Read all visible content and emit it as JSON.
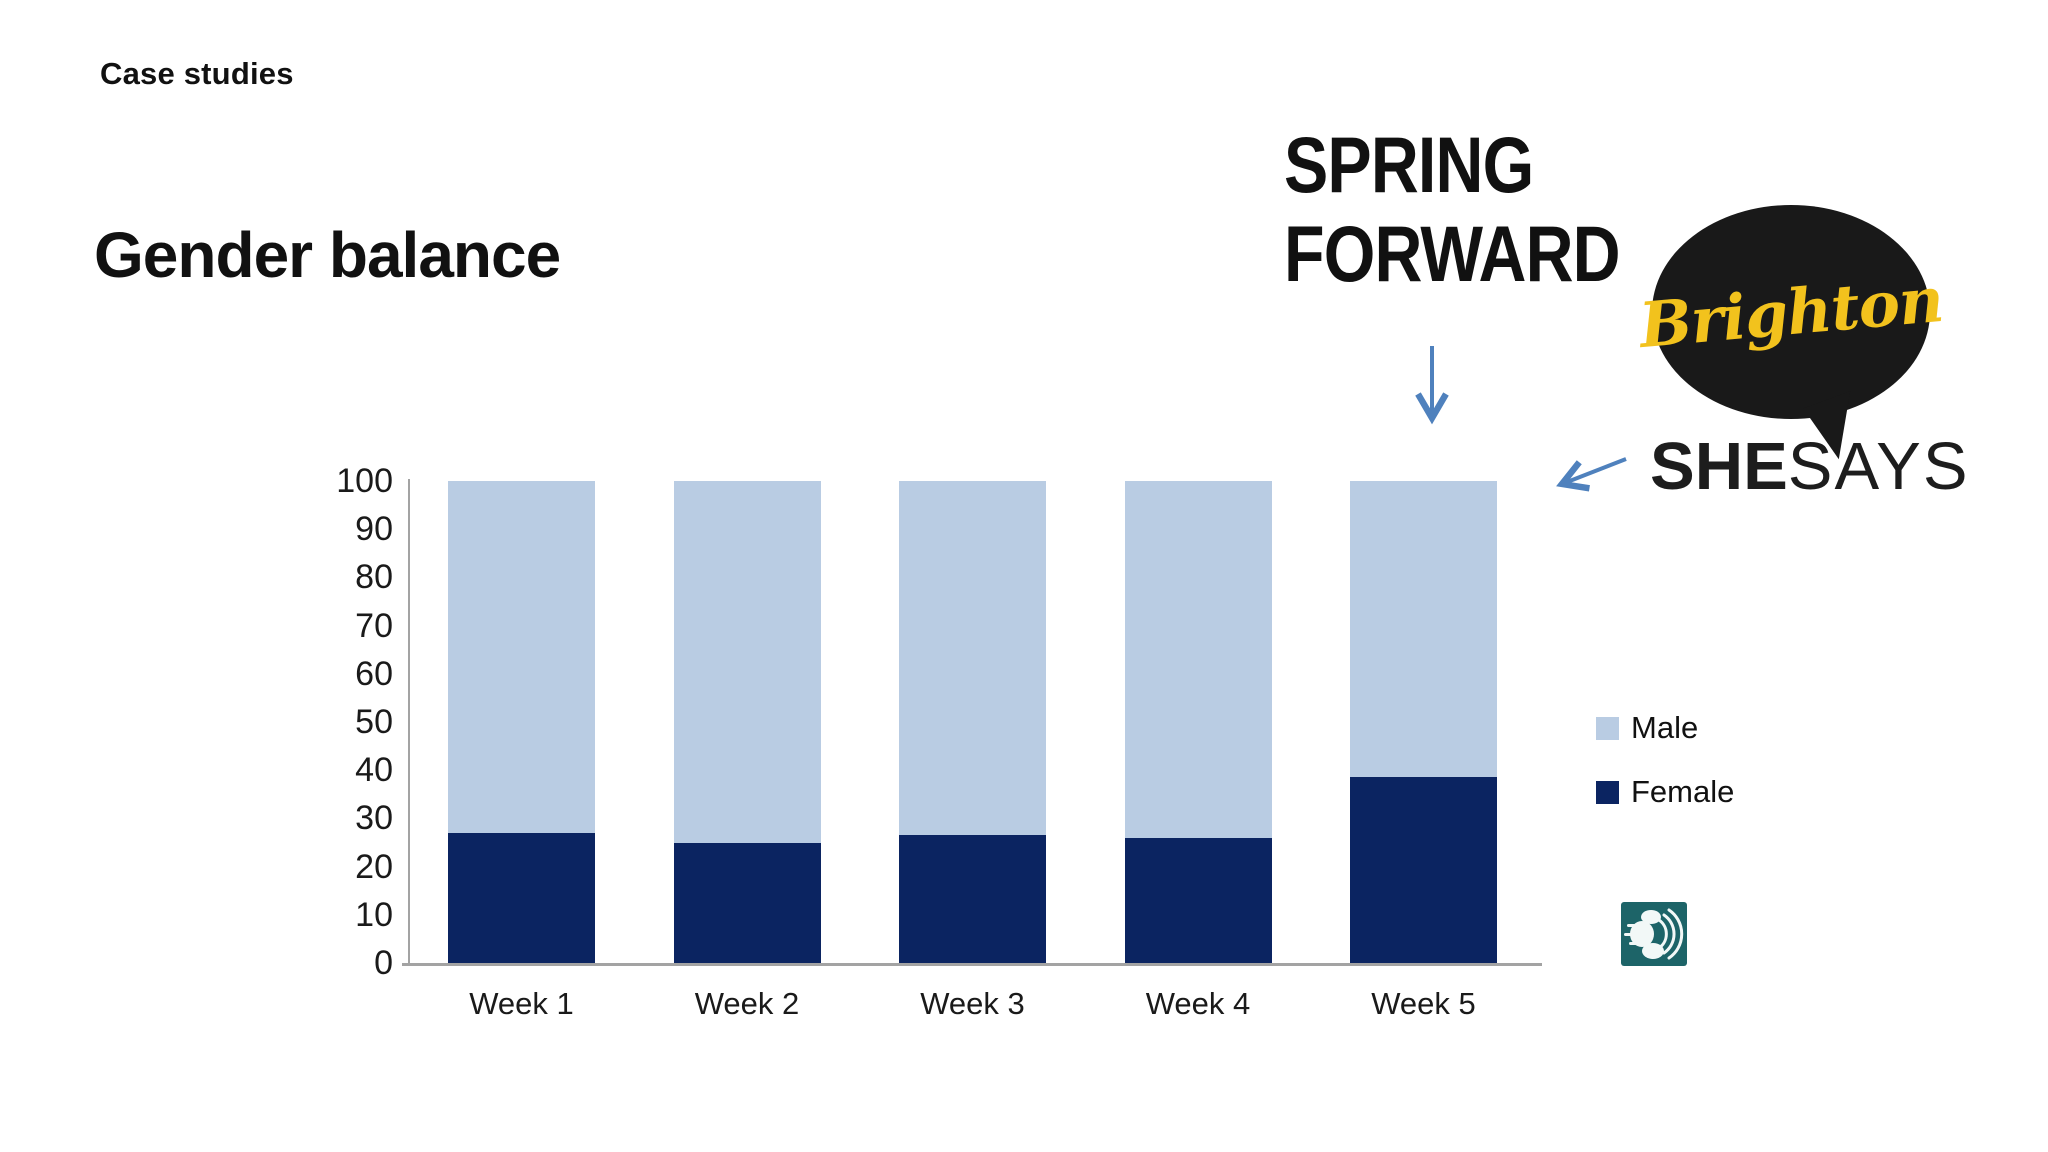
{
  "slide": {
    "eyebrow": "Case studies",
    "title": "Gender balance",
    "background": "#ffffff"
  },
  "chart_data": {
    "type": "bar",
    "stacked": true,
    "title": "",
    "xlabel": "",
    "ylabel": "",
    "categories": [
      "Week 1",
      "Week 2",
      "Week 3",
      "Week 4",
      "Week 5"
    ],
    "series": [
      {
        "name": "Female",
        "color": "#0b2461",
        "values": [
          27,
          25,
          26.5,
          26,
          38.5
        ]
      },
      {
        "name": "Male",
        "color": "#b9cce3",
        "values": [
          73,
          75,
          73.5,
          74,
          61.5
        ]
      }
    ],
    "stack_order": [
      "Female",
      "Male"
    ],
    "ylim": [
      0,
      100
    ],
    "yticks": [
      0,
      10,
      20,
      30,
      40,
      50,
      60,
      70,
      80,
      90,
      100
    ],
    "grid": false,
    "legend_position": "right"
  },
  "legend": {
    "items": [
      {
        "label": "Male",
        "color": "#b9cce3"
      },
      {
        "label": "Female",
        "color": "#0b2461"
      }
    ]
  },
  "axis": {
    "line_color": "#a3a3a3",
    "tick_color": "#1a1a1a"
  },
  "logos": {
    "spring_forward": {
      "line1": "SPRING",
      "line2": "FORWARD",
      "text_color": "#111111",
      "plane_teal": "#2fc3c6",
      "plane_magenta": "#e01e77",
      "plane_orange": "#f6a623"
    },
    "brighton_shesays": {
      "bubble_text": "Brighton",
      "bubble_color": "#191919",
      "script_color": "#f2c21d",
      "brand_bold": "SHE",
      "brand_light": "SAYS",
      "brand_color": "#1d1d1d"
    },
    "speaker_badge": {
      "background": "#1d6468",
      "glyph": "speaker-with-sound-waves"
    }
  },
  "annotations": {
    "arrow_color": "#4f81bd"
  }
}
